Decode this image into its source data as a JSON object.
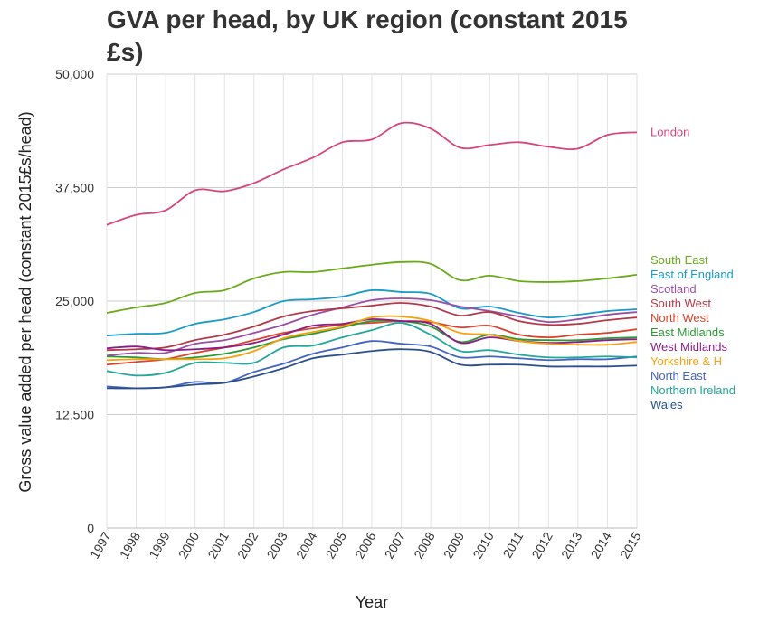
{
  "chart_data": {
    "type": "line",
    "title": "GVA per head, by UK region (constant 2015 £s)",
    "xlabel": "Year",
    "ylabel": "Gross value added per head (constant 2015£s/head)",
    "ylim": [
      0,
      50000
    ],
    "yticks": [
      0,
      12500,
      25000,
      37500,
      50000
    ],
    "ytick_labels": [
      "0",
      "12,500",
      "25,000",
      "37,500",
      "50,000"
    ],
    "grid": true,
    "legend": "right, at line ends",
    "x": [
      "1997",
      "1998",
      "1999",
      "2000",
      "2001",
      "2002",
      "2003",
      "2004",
      "2005",
      "2006",
      "2007",
      "2008",
      "2009",
      "2010",
      "2011",
      "2012",
      "2013",
      "2014",
      "2015"
    ],
    "series": [
      {
        "name": "London",
        "color": "#d6457a",
        "values": [
          33400,
          34500,
          35000,
          37200,
          37100,
          38000,
          39500,
          40800,
          42500,
          42800,
          44600,
          44000,
          41900,
          42200,
          42500,
          42000,
          41800,
          43300,
          43600
        ]
      },
      {
        "name": "South East",
        "color": "#6aaa19",
        "values": [
          23700,
          24300,
          24800,
          25900,
          26200,
          27500,
          28200,
          28200,
          28600,
          29000,
          29300,
          29100,
          27300,
          27800,
          27200,
          27100,
          27200,
          27500,
          27900
        ]
      },
      {
        "name": "East of England",
        "color": "#1a9bc6",
        "values": [
          21200,
          21400,
          21500,
          22500,
          23000,
          23800,
          25000,
          25200,
          25500,
          26200,
          26000,
          25800,
          24200,
          24400,
          23700,
          23200,
          23500,
          23900,
          24100
        ]
      },
      {
        "name": "Scotland",
        "color": "#9b4ea3",
        "values": [
          19000,
          19300,
          19300,
          20300,
          20700,
          21500,
          22400,
          23500,
          24300,
          25100,
          25300,
          25100,
          24400,
          23900,
          23300,
          22700,
          23000,
          23500,
          23800
        ]
      },
      {
        "name": "South West",
        "color": "#b23a48",
        "values": [
          19600,
          19700,
          19900,
          20700,
          21300,
          22200,
          23300,
          23900,
          24200,
          24500,
          24800,
          24400,
          23400,
          23800,
          22800,
          22400,
          22500,
          22900,
          23200
        ]
      },
      {
        "name": "North West",
        "color": "#d9442b",
        "values": [
          18000,
          18300,
          18600,
          19300,
          19900,
          20700,
          21500,
          22000,
          22400,
          22600,
          22800,
          22700,
          22100,
          22300,
          21300,
          21000,
          21300,
          21500,
          21900
        ]
      },
      {
        "name": "East Midlands",
        "color": "#2a9a36",
        "values": [
          18900,
          18800,
          18600,
          18800,
          19200,
          19900,
          20800,
          21400,
          22100,
          22800,
          22800,
          22200,
          20500,
          21300,
          20800,
          20700,
          20700,
          20900,
          21000
        ]
      },
      {
        "name": "West Midlands",
        "color": "#8a1d86",
        "values": [
          19800,
          20000,
          19600,
          19700,
          19900,
          20400,
          21300,
          22300,
          22500,
          23000,
          22800,
          22500,
          20400,
          21000,
          20600,
          20400,
          20500,
          20700,
          20800
        ]
      },
      {
        "name": "Yorkshire & H",
        "color": "#f5a20f",
        "values": [
          18500,
          18600,
          18600,
          18600,
          18700,
          19500,
          20900,
          21600,
          22200,
          23200,
          23300,
          22800,
          21500,
          21300,
          20600,
          20300,
          20200,
          20200,
          20500
        ]
      },
      {
        "name": "North East",
        "color": "#4364c0",
        "values": [
          15600,
          15400,
          15500,
          16100,
          16000,
          17200,
          18100,
          19200,
          19900,
          20600,
          20300,
          20000,
          18800,
          18900,
          18700,
          18500,
          18600,
          18600,
          18900
        ]
      },
      {
        "name": "Northern Ireland",
        "color": "#24a699",
        "values": [
          17300,
          16800,
          17100,
          18200,
          18200,
          18200,
          19900,
          20100,
          21000,
          21800,
          22600,
          21300,
          19500,
          19600,
          19100,
          18800,
          18800,
          18900,
          18800
        ]
      },
      {
        "name": "Wales",
        "color": "#2c4f8c",
        "values": [
          15400,
          15400,
          15500,
          15800,
          16000,
          16700,
          17600,
          18700,
          19100,
          19500,
          19700,
          19400,
          18000,
          18000,
          18000,
          17800,
          17800,
          17800,
          17900
        ]
      }
    ]
  }
}
